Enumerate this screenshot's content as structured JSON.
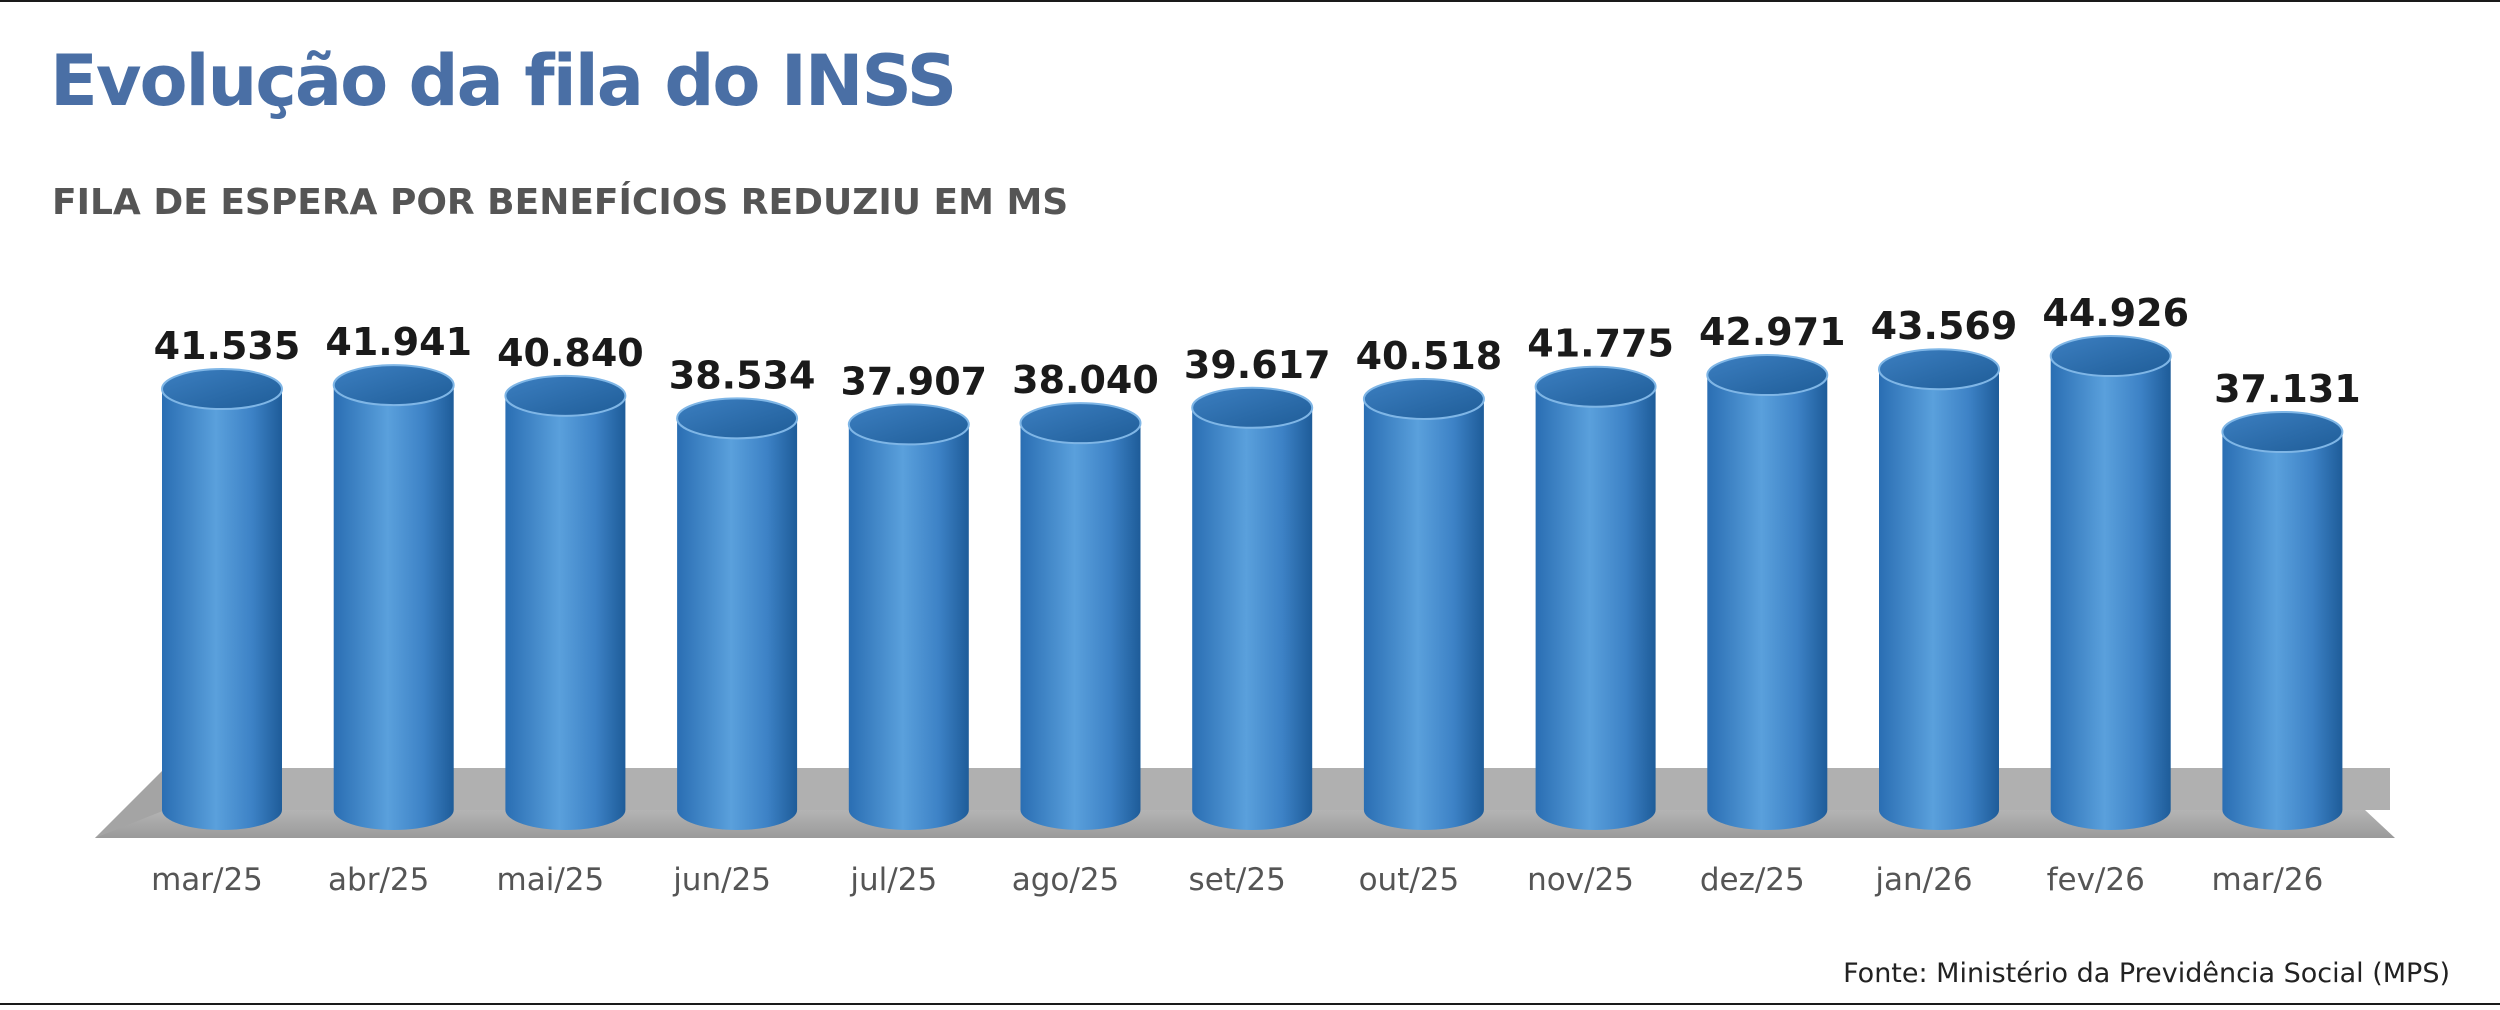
{
  "header": {
    "title": "Evolução da fila do INSS",
    "subtitle": "FILA DE ESPERA POR BENEFÍCIOS REDUZIU EM MS"
  },
  "footer": {
    "source": "Fonte: Ministério da Previdência Social (MPS)"
  },
  "colors": {
    "title": "#4a6fa5",
    "bar_light": "#5aa0dc",
    "bar_dark": "#1e5c99",
    "floor": "#a9a9a9"
  },
  "chart_data": {
    "type": "bar",
    "title": "Evolução da fila do INSS",
    "subtitle": "FILA DE ESPERA POR BENEFÍCIOS REDUZIU EM MS",
    "categories": [
      "mar/25",
      "abr/25",
      "mai/25",
      "jun/25",
      "jul/25",
      "ago/25",
      "set/25",
      "out/25",
      "nov/25",
      "dez/25",
      "jan/26",
      "fev/26",
      "mar/26"
    ],
    "values": [
      41535,
      41941,
      40840,
      38534,
      37907,
      38040,
      39617,
      40518,
      41775,
      42971,
      43569,
      44926,
      37131
    ],
    "value_labels": [
      "41.535",
      "41.941",
      "40.840",
      "38.534",
      "37.907",
      "38.040",
      "39.617",
      "40.518",
      "41.775",
      "42.971",
      "43.569",
      "44.926",
      "37.131"
    ],
    "xlabel": "",
    "ylabel": "",
    "grid": false,
    "legend": "none",
    "source": "Fonte: Ministério da Previdência Social (MPS)"
  }
}
